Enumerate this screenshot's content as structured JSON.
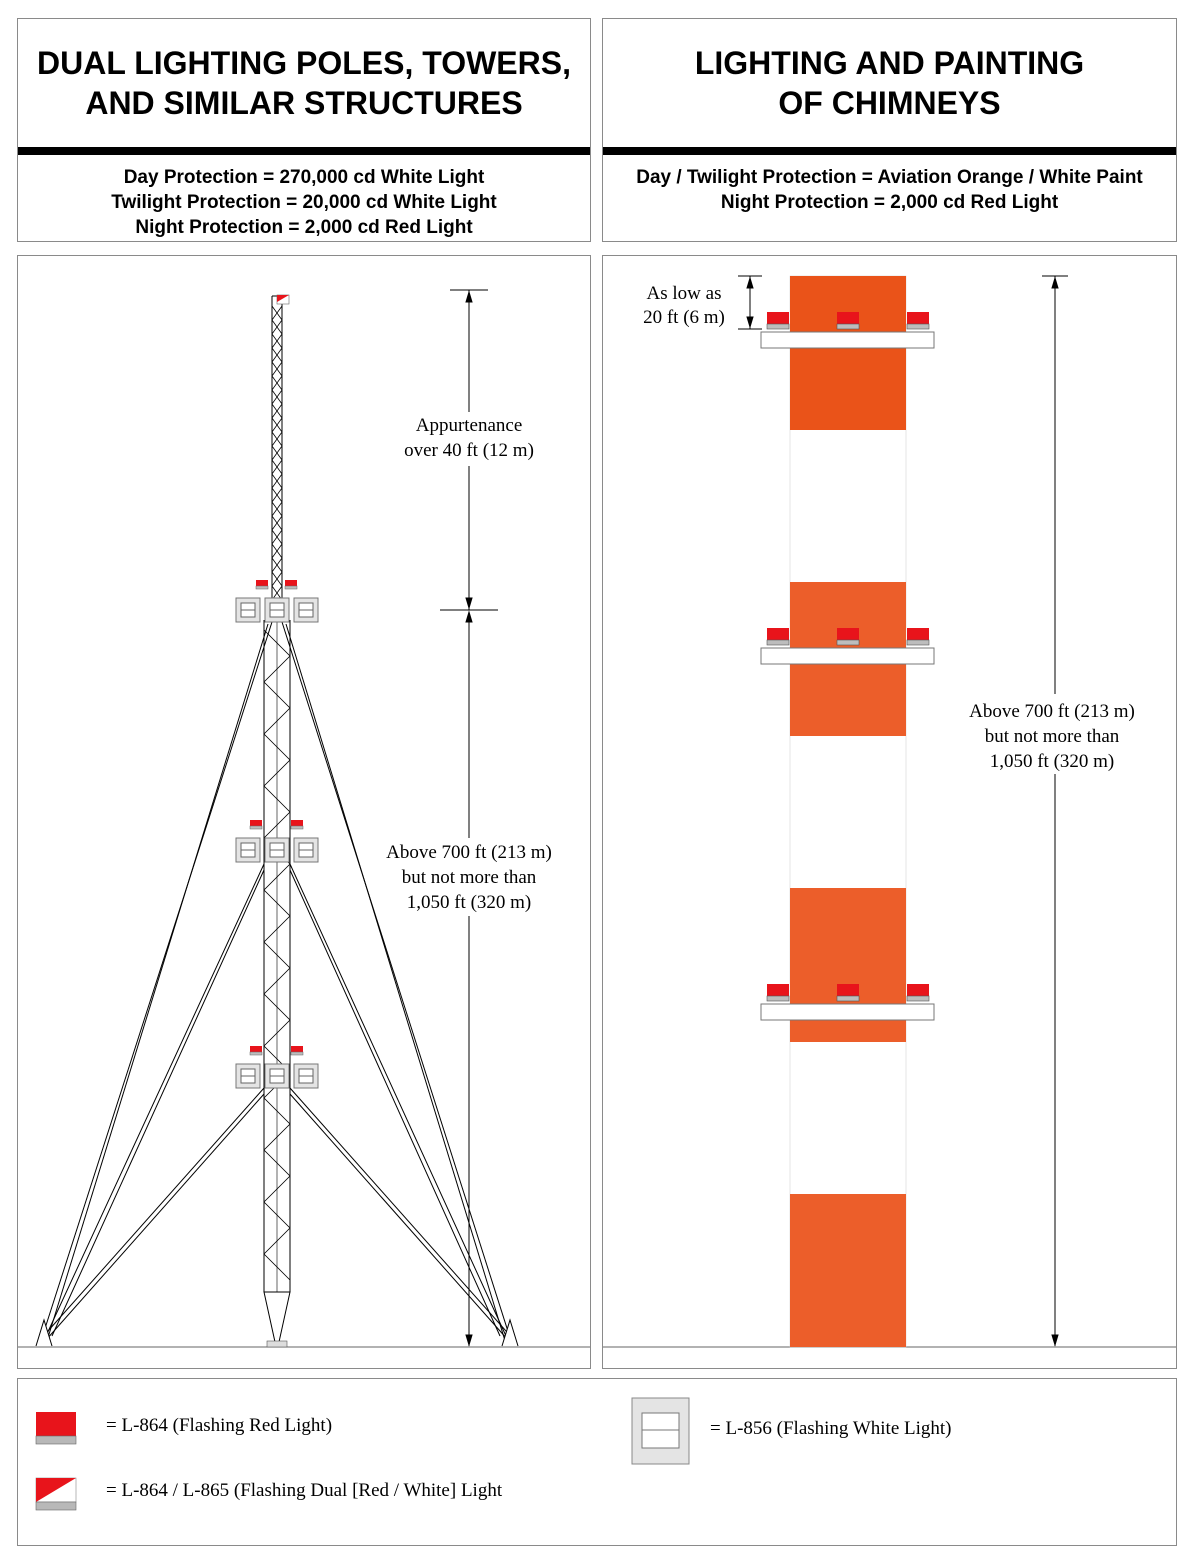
{
  "left_header": {
    "title_lines": [
      "DUAL LIGHTING POLES, TOWERS,",
      "AND SIMILAR STRUCTURES"
    ],
    "sub_lines": [
      "Day Protection = 270,000 cd White Light",
      "Twilight Protection = 20,000 cd White Light",
      "Night Protection = 2,000 cd Red Light"
    ]
  },
  "right_header": {
    "title_lines": [
      "LIGHTING AND PAINTING",
      "OF CHIMNEYS"
    ],
    "sub_lines": [
      "Day / Twilight Protection =  Aviation Orange / White Paint",
      "Night Protection = 2,000 cd Red Light"
    ]
  },
  "tower_diagram": {
    "appurtenance_lines": [
      "Appurtenance",
      "over 40 ft (12 m)"
    ],
    "height_lines": [
      "Above 700 ft (213 m)",
      "but not more than",
      "1,050 ft (320 m)"
    ]
  },
  "chimney_diagram": {
    "low_lines": [
      "As low as",
      "20 ft (6 m)"
    ],
    "height_lines": [
      "Above 700 ft (213 m)",
      "but not more than",
      "1,050 ft (320 m)"
    ]
  },
  "legend": {
    "red_light": "= L-864 (Flashing Red Light)",
    "dual_light": "= L-864 / L-865 (Flashing Dual [Red / White] Light",
    "white_light": "= L-856 (Flashing White Light)"
  },
  "colors": {
    "orange": "#ea5b22",
    "red": "#e8141b",
    "line": "#000000"
  }
}
